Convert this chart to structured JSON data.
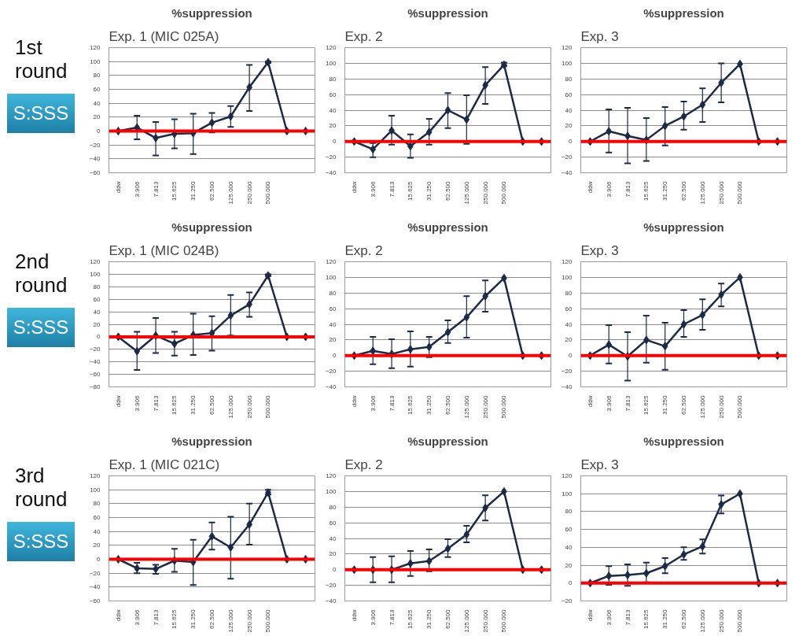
{
  "chart_data": [
    {
      "type": "line",
      "subtitle": "Exp. 1 (MIC 025A)",
      "title": "%suppression",
      "annotations": [
        "1st round",
        "S:SSS"
      ],
      "categories": [
        "ddw",
        "3.906",
        "7.813",
        "15.625",
        "31.250",
        "62.500",
        "125.000",
        "250.000",
        "500.000",
        null,
        null
      ],
      "ylim": [
        -60,
        120
      ],
      "yticks": [
        -60,
        -40,
        -20,
        0,
        20,
        40,
        60,
        80,
        100,
        120
      ],
      "grid": "y",
      "marker": "diamond",
      "line_style": "solid",
      "ref_lines": [
        {
          "axis": "y",
          "value": 0,
          "color": "#ff0000"
        }
      ],
      "series": [
        {
          "color": "#1b2a47",
          "values": [
            0,
            5,
            -10,
            -4,
            -3,
            12,
            21,
            63,
            99,
            0,
            0
          ],
          "errors": [
            null,
            [
              -12,
              22
            ],
            [
              -35,
              13
            ],
            [
              -25,
              17
            ],
            [
              -33,
              25
            ],
            [
              -2,
              26
            ],
            [
              6,
              36
            ],
            [
              29,
              95
            ],
            [
              98,
              100
            ],
            null,
            null
          ]
        }
      ]
    },
    {
      "type": "line",
      "subtitle": "Exp. 2",
      "title": "%suppression",
      "categories": [
        "ddw",
        "3.906",
        "7.813",
        "15.625",
        "31.250",
        "62.500",
        "125.000",
        "250.000",
        "500.000",
        null,
        null
      ],
      "ylim": [
        -40,
        120
      ],
      "yticks": [
        -40,
        -20,
        0,
        20,
        40,
        60,
        80,
        100,
        120
      ],
      "grid": "y",
      "marker": "diamond",
      "line_style": "solid",
      "ref_lines": [
        {
          "axis": "y",
          "value": 0,
          "color": "#ff0000"
        }
      ],
      "series": [
        {
          "color": "#1b2a47",
          "values": [
            0,
            -10,
            14,
            -6,
            12,
            40,
            28,
            72,
            98,
            0,
            0
          ],
          "errors": [
            null,
            [
              -20,
              -2
            ],
            [
              -4,
              33
            ],
            [
              -21,
              9
            ],
            [
              -4,
              29
            ],
            [
              17,
              62
            ],
            [
              -3,
              59
            ],
            [
              48,
              95
            ],
            [
              96,
              101
            ],
            null,
            null
          ]
        }
      ]
    },
    {
      "type": "line",
      "subtitle": "Exp. 3",
      "title": "%suppression",
      "categories": [
        "ddw",
        "3.906",
        "7.813",
        "15.625",
        "31.250",
        "62.500",
        "125.000",
        "250.000",
        "500.000",
        null,
        null
      ],
      "ylim": [
        -40,
        120
      ],
      "yticks": [
        -40,
        -20,
        0,
        20,
        40,
        60,
        80,
        100,
        120
      ],
      "grid": "y",
      "marker": "diamond",
      "line_style": "solid",
      "ref_lines": [
        {
          "axis": "y",
          "value": 0,
          "color": "#ff0000"
        }
      ],
      "series": [
        {
          "color": "#1b2a47",
          "values": [
            0,
            13,
            7,
            2,
            20,
            32,
            47,
            75,
            99,
            0,
            0
          ],
          "errors": [
            null,
            [
              -14,
              41
            ],
            [
              -28,
              43
            ],
            [
              -25,
              30
            ],
            [
              -5,
              44
            ],
            [
              15,
              51
            ],
            [
              25,
              68
            ],
            [
              50,
              100
            ],
            null,
            null,
            null
          ]
        }
      ]
    },
    {
      "type": "line",
      "subtitle": "Exp. 1 (MIC 024B)",
      "title": "%suppression",
      "annotations": [
        "2nd round",
        "S:SSS"
      ],
      "categories": [
        "ddw",
        "3.906",
        "7.813",
        "15.625",
        "31.250",
        "62.500",
        "125.000",
        "250.000",
        "500.000",
        null,
        null
      ],
      "ylim": [
        -80,
        120
      ],
      "yticks": [
        -80,
        -60,
        -40,
        -20,
        0,
        20,
        40,
        60,
        80,
        100,
        120
      ],
      "grid": "y",
      "marker": "diamond",
      "line_style": "solid",
      "ref_lines": [
        {
          "axis": "y",
          "value": 0,
          "color": "#ff0000"
        }
      ],
      "series": [
        {
          "color": "#1b2a47",
          "values": [
            0,
            -23,
            2,
            -11,
            3,
            6,
            34,
            52,
            98,
            0,
            0
          ],
          "errors": [
            null,
            [
              -53,
              8
            ],
            [
              -26,
              30
            ],
            [
              -30,
              8
            ],
            [
              -29,
              37
            ],
            [
              -22,
              33
            ],
            [
              2,
              67
            ],
            [
              32,
              71
            ],
            [
              97,
              100
            ],
            null,
            null
          ]
        }
      ]
    },
    {
      "type": "line",
      "subtitle": "Exp. 2",
      "title": "%suppression",
      "categories": [
        "ddw",
        "3.906",
        "7.813",
        "15.625",
        "31.250",
        "62.500",
        "125.000",
        "250.000",
        "500.000",
        null,
        null
      ],
      "ylim": [
        -40,
        120
      ],
      "yticks": [
        -40,
        -20,
        0,
        20,
        40,
        60,
        80,
        100,
        120
      ],
      "grid": "y",
      "marker": "diamond",
      "line_style": "solid",
      "ref_lines": [
        {
          "axis": "y",
          "value": 0,
          "color": "#ff0000"
        }
      ],
      "series": [
        {
          "color": "#1b2a47",
          "values": [
            0,
            6,
            2,
            8,
            11,
            30,
            49,
            76,
            99,
            0,
            0
          ],
          "errors": [
            null,
            [
              -11,
              24
            ],
            [
              -16,
              21
            ],
            [
              -14,
              31
            ],
            [
              -2,
              24
            ],
            [
              16,
              45
            ],
            [
              23,
              76
            ],
            [
              56,
              96
            ],
            null,
            null,
            null
          ]
        }
      ]
    },
    {
      "type": "line",
      "subtitle": "Exp. 3",
      "title": "%suppression",
      "categories": [
        "ddw",
        "3.906",
        "7.813",
        "15.625",
        "31.250",
        "62.500",
        "125.000",
        "250.000",
        "500.000",
        null,
        null
      ],
      "ylim": [
        -40,
        120
      ],
      "yticks": [
        -40,
        -20,
        0,
        20,
        40,
        60,
        80,
        100,
        120
      ],
      "grid": "y",
      "marker": "diamond",
      "line_style": "solid",
      "ref_lines": [
        {
          "axis": "y",
          "value": 0,
          "color": "#ff0000"
        }
      ],
      "series": [
        {
          "color": "#1b2a47",
          "values": [
            0,
            14,
            -1,
            20,
            12,
            40,
            52,
            78,
            100,
            0,
            0
          ],
          "errors": [
            null,
            [
              -10,
              39
            ],
            [
              -32,
              30
            ],
            [
              -9,
              51
            ],
            [
              -18,
              42
            ],
            [
              24,
              58
            ],
            [
              33,
              72
            ],
            [
              63,
              92
            ],
            null,
            null,
            null
          ]
        }
      ]
    },
    {
      "type": "line",
      "subtitle": "Exp. 1 (MIC 021C)",
      "title": "%suppression",
      "annotations": [
        "3rd round",
        "S:SSS"
      ],
      "categories": [
        "ddw",
        "3.906",
        "7.813",
        "15.625",
        "31.250",
        "62.500",
        "125.000",
        "250.000",
        "500.000",
        null,
        null
      ],
      "ylim": [
        -60,
        120
      ],
      "yticks": [
        -60,
        -40,
        -20,
        0,
        20,
        40,
        60,
        80,
        100,
        120
      ],
      "grid": "y",
      "marker": "diamond",
      "line_style": "solid",
      "ref_lines": [
        {
          "axis": "y",
          "value": 0,
          "color": "#ff0000"
        }
      ],
      "series": [
        {
          "color": "#1b2a47",
          "values": [
            0,
            -13,
            -14,
            -2,
            -4,
            33,
            17,
            50,
            96,
            0,
            0
          ],
          "errors": [
            null,
            [
              -20,
              -5
            ],
            [
              -21,
              -8
            ],
            [
              -18,
              15
            ],
            [
              -37,
              28
            ],
            [
              14,
              53
            ],
            [
              -28,
              61
            ],
            [
              21,
              80
            ],
            [
              93,
              100
            ],
            null,
            null
          ]
        }
      ]
    },
    {
      "type": "line",
      "subtitle": "Exp. 2",
      "title": "%suppression",
      "categories": [
        "ddw",
        "3.906",
        "7.813",
        "15.625",
        "31.250",
        "62.500",
        "125.000",
        "250.000",
        "500.000",
        null,
        null
      ],
      "ylim": [
        -40,
        120
      ],
      "yticks": [
        -40,
        -20,
        0,
        20,
        40,
        60,
        80,
        100,
        120
      ],
      "grid": "y",
      "marker": "diamond",
      "line_style": "solid",
      "ref_lines": [
        {
          "axis": "y",
          "value": 0,
          "color": "#ff0000"
        }
      ],
      "series": [
        {
          "color": "#1b2a47",
          "values": [
            0,
            0,
            0,
            8,
            11,
            27,
            45,
            79,
            100,
            0,
            0
          ],
          "errors": [
            null,
            [
              -16,
              16
            ],
            [
              -16,
              17
            ],
            [
              -8,
              24
            ],
            [
              -2,
              26
            ],
            [
              16,
              39
            ],
            [
              35,
              56
            ],
            [
              63,
              95
            ],
            null,
            null,
            null
          ]
        }
      ]
    },
    {
      "type": "line",
      "subtitle": "Exp. 3",
      "title": "%suppression",
      "categories": [
        "ddw",
        "3.906",
        "7.813",
        "15.625",
        "31.250",
        "62.500",
        "125.000",
        "250.000",
        "500.000",
        null,
        null
      ],
      "ylim": [
        -20,
        120
      ],
      "yticks": [
        -20,
        0,
        20,
        40,
        60,
        80,
        100,
        120
      ],
      "grid": "y",
      "marker": "diamond",
      "line_style": "solid",
      "ref_lines": [
        {
          "axis": "y",
          "value": 0,
          "color": "#ff0000"
        }
      ],
      "series": [
        {
          "color": "#1b2a47",
          "values": [
            0,
            8,
            9,
            11,
            19,
            32,
            41,
            88,
            100,
            0,
            0
          ],
          "errors": [
            null,
            [
              -2,
              19
            ],
            [
              -3,
              21
            ],
            [
              1,
              23
            ],
            [
              11,
              28
            ],
            [
              26,
              40
            ],
            [
              33,
              49
            ],
            [
              78,
              98
            ],
            null,
            null,
            null
          ]
        }
      ]
    }
  ]
}
